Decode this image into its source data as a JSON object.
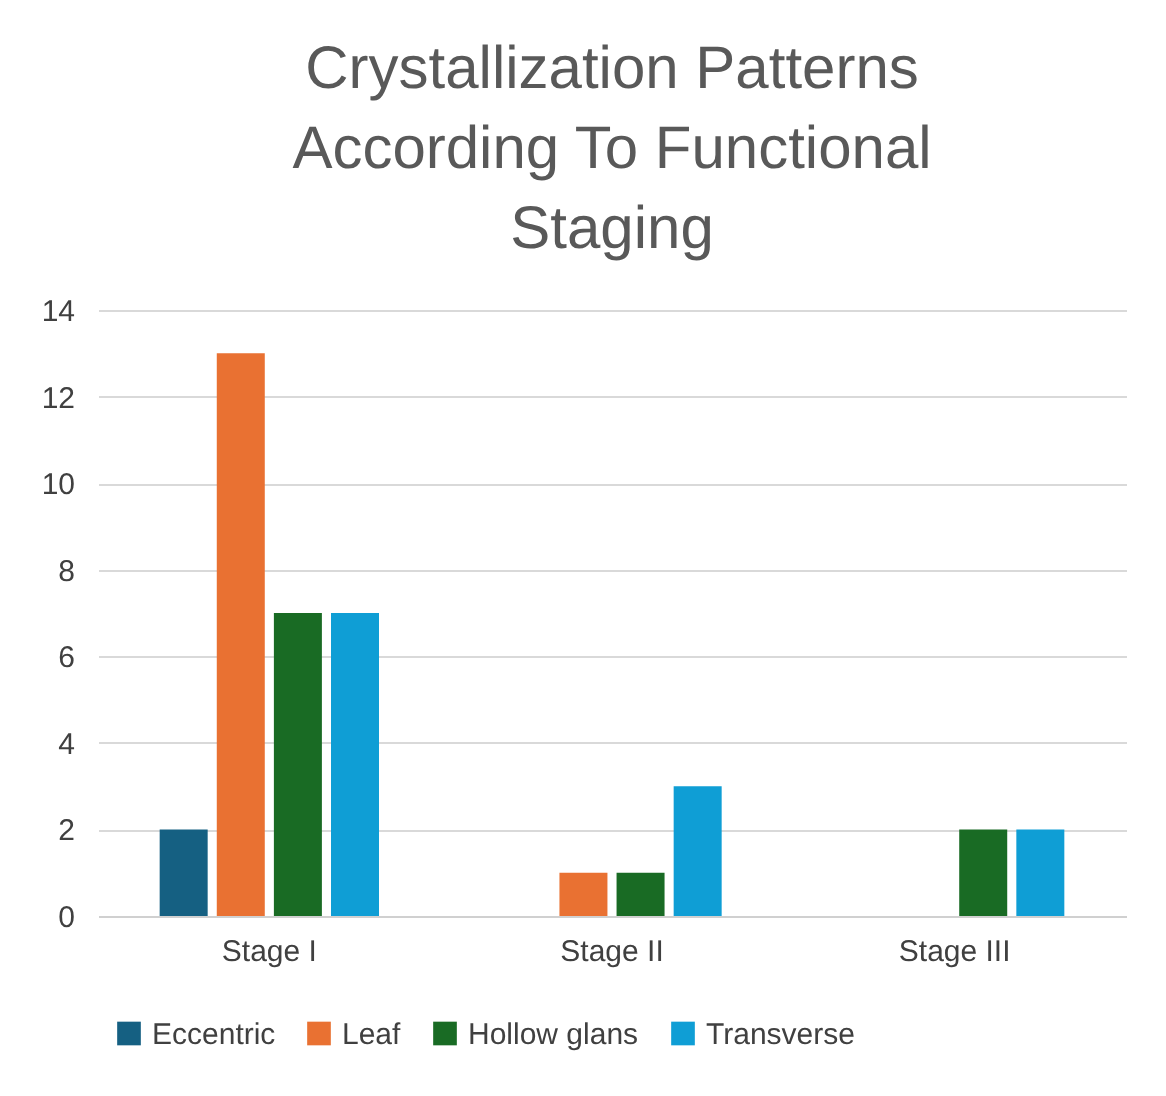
{
  "chart_data": {
    "type": "bar",
    "title": "Crystallization Patterns According To Functional Staging",
    "categories": [
      "Stage I",
      "Stage II",
      "Stage III"
    ],
    "series": [
      {
        "name": "Eccentric",
        "color": "#156082",
        "values": [
          2,
          0,
          0
        ]
      },
      {
        "name": "Leaf",
        "color": "#e97132",
        "values": [
          13,
          1,
          0
        ]
      },
      {
        "name": "Hollow glans",
        "color": "#196b24",
        "values": [
          7,
          1,
          2
        ]
      },
      {
        "name": "Transverse",
        "color": "#0f9ed5",
        "values": [
          7,
          3,
          2
        ]
      }
    ],
    "ylim": [
      0,
      14
    ],
    "yticks": [
      0,
      2,
      4,
      6,
      8,
      10,
      12,
      14
    ],
    "grid": "y",
    "legend": "bottom"
  }
}
